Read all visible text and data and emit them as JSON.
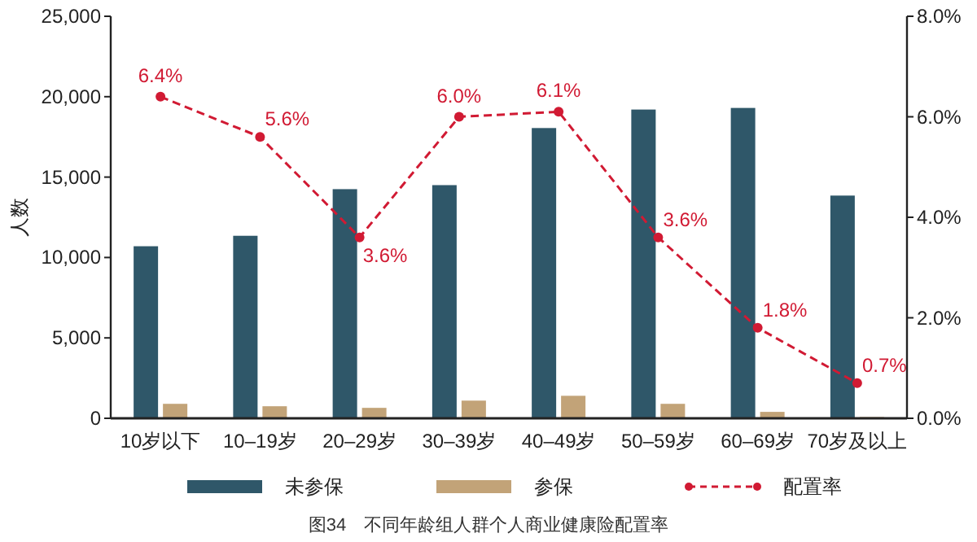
{
  "chart_data": {
    "type": "bar",
    "title": "图34　不同年龄组人群个人商业健康险配置率",
    "ylabel": "人数",
    "categories": [
      "10岁以下",
      "10–19岁",
      "20–29岁",
      "30–39岁",
      "40–49岁",
      "50–59岁",
      "60–69岁",
      "70岁及以上"
    ],
    "series": [
      {
        "name": "未参保",
        "color": "#2f5769",
        "values": [
          10700,
          11350,
          14250,
          14500,
          18050,
          19200,
          19300,
          13850
        ]
      },
      {
        "name": "参保",
        "color": "#c2a378",
        "values": [
          900,
          750,
          650,
          1100,
          1400,
          900,
          400,
          80
        ]
      },
      {
        "name": "配置率",
        "type": "line",
        "axis": "y2",
        "color": "#d11a33",
        "line_style": "dashed",
        "marker": "circle",
        "values": [
          6.4,
          5.6,
          3.6,
          6.0,
          6.1,
          3.6,
          1.8,
          0.7
        ],
        "value_labels": [
          "6.4%",
          "5.6%",
          "3.6%",
          "6.0%",
          "6.1%",
          "3.6%",
          "1.8%",
          "0.7%"
        ]
      }
    ],
    "ylim": [
      0,
      25000
    ],
    "yticks": [
      {
        "value": 0,
        "label": "0"
      },
      {
        "value": 5000,
        "label": "5,000"
      },
      {
        "value": 10000,
        "label": "10,000"
      },
      {
        "value": 15000,
        "label": "15,000"
      },
      {
        "value": 20000,
        "label": "20,000"
      },
      {
        "value": 25000,
        "label": "25,000"
      }
    ],
    "y2lim": [
      0,
      8
    ],
    "y2ticks": [
      {
        "value": 0,
        "label": "0.0%"
      },
      {
        "value": 2,
        "label": "2.0%"
      },
      {
        "value": 4,
        "label": "4.0%"
      },
      {
        "value": 6,
        "label": "6.0%"
      },
      {
        "value": 8,
        "label": "8.0%"
      }
    ],
    "legend": "bottom",
    "grid": false
  }
}
